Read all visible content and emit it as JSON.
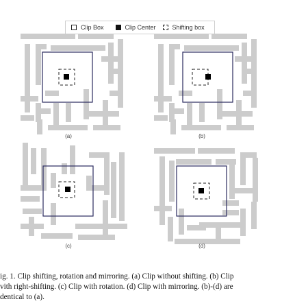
{
  "legend": {
    "clip_box": "Clip Box",
    "clip_center": "Clip Center",
    "shifting_box": "Shifting box",
    "clip_box_icon": "clip-box-icon",
    "clip_center_icon": "clip-center-icon",
    "shifting_box_icon": "shifting-box-icon"
  },
  "panels": [
    {
      "label": "(a)"
    },
    {
      "label": "(b)"
    },
    {
      "label": "(c)"
    },
    {
      "label": "(d)"
    }
  ],
  "caption": {
    "line1": "ig. 1. Clip shifting, rotation and mirroring. (a) Clip without shifting. (b) Clip",
    "line2": "vith right-shifting. (c) Clip with rotation. (d) Clip with mirroring. (b)-(d) are",
    "line3": "dentical to (a)."
  },
  "colors": {
    "pattern": "#cccccc",
    "clip_box": "#2a2a5e",
    "center": "#000000"
  }
}
